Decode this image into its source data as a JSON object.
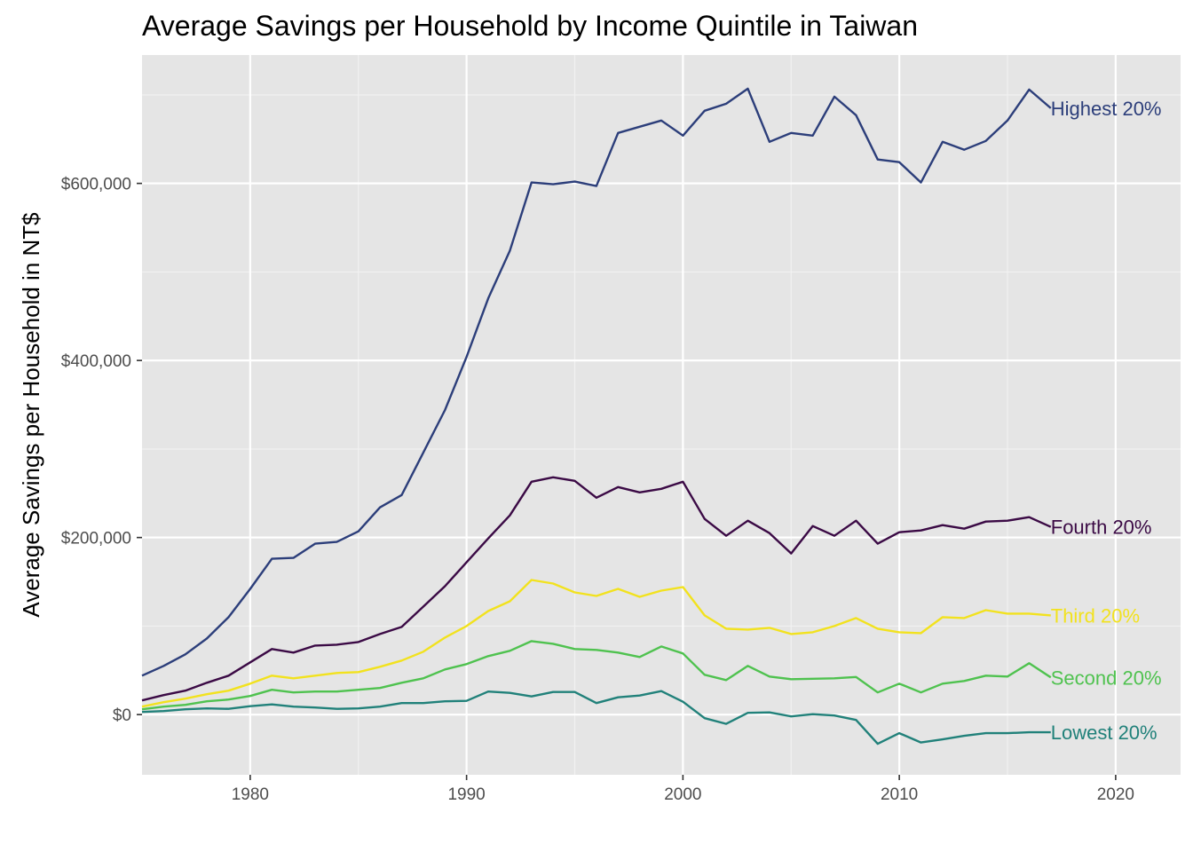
{
  "chart_data": {
    "type": "line",
    "title": "Average Savings per Household by Income Quintile in Taiwan",
    "xlabel": "",
    "ylabel": "Average Savings per Household in NT$",
    "xlim": [
      1975,
      2023
    ],
    "ylim": [
      -68000,
      745000
    ],
    "x_ticks": [
      1980,
      1990,
      2000,
      2010,
      2020
    ],
    "y_ticks": [
      0,
      200000,
      400000,
      600000
    ],
    "y_tick_labels": [
      "$0",
      "$200,000",
      "$400,000",
      "$600,000"
    ],
    "grid": true,
    "legend": "direct labels at line ends",
    "x": [
      1975,
      1976,
      1977,
      1978,
      1979,
      1980,
      1981,
      1982,
      1983,
      1984,
      1985,
      1986,
      1987,
      1988,
      1989,
      1990,
      1991,
      1992,
      1993,
      1994,
      1995,
      1996,
      1997,
      1998,
      1999,
      2000,
      2001,
      2002,
      2003,
      2004,
      2005,
      2006,
      2007,
      2008,
      2009,
      2010,
      2011,
      2012,
      2013,
      2014,
      2015,
      2016,
      2017
    ],
    "series": [
      {
        "name": "Highest 20%",
        "color": "#2c3e7a",
        "values": [
          44000,
          55000,
          68000,
          86000,
          110000,
          142000,
          176000,
          177000,
          193000,
          195000,
          207000,
          234000,
          248000,
          296000,
          344000,
          404000,
          470000,
          524000,
          601000,
          599000,
          602000,
          597000,
          657000,
          664000,
          671000,
          654000,
          682000,
          690000,
          707000,
          647000,
          657000,
          654000,
          698000,
          677000,
          627000,
          624000,
          601000,
          647000,
          638000,
          648000,
          671000,
          706000,
          685000
        ]
      },
      {
        "name": "Fourth 20%",
        "color": "#3b0a45",
        "values": [
          16000,
          22000,
          27000,
          36000,
          44000,
          59000,
          74000,
          70000,
          78000,
          79000,
          82000,
          91000,
          99000,
          122000,
          145000,
          172000,
          199000,
          225000,
          263000,
          268000,
          264000,
          245000,
          257000,
          251000,
          255000,
          263000,
          221000,
          202000,
          219000,
          205000,
          182000,
          213000,
          202000,
          219000,
          193000,
          206000,
          208000,
          214000,
          210000,
          218000,
          219000,
          223000,
          212000
        ]
      },
      {
        "name": "Third 20%",
        "color": "#f2e21e",
        "values": [
          9000,
          14000,
          18000,
          23000,
          27000,
          35000,
          44000,
          41000,
          44000,
          47000,
          48000,
          54000,
          61000,
          71000,
          87000,
          100000,
          117000,
          128000,
          152000,
          148000,
          138000,
          134000,
          142000,
          133000,
          140000,
          144000,
          112000,
          97000,
          96000,
          98000,
          91000,
          93000,
          100000,
          109000,
          97000,
          93000,
          92000,
          110000,
          109000,
          118000,
          114000,
          114000,
          112000
        ]
      },
      {
        "name": "Second 20%",
        "color": "#4fc24f",
        "values": [
          6000,
          9000,
          11000,
          15000,
          17000,
          21000,
          28000,
          25000,
          26000,
          26000,
          28000,
          30000,
          36000,
          41000,
          51000,
          57000,
          66000,
          72000,
          83000,
          80000,
          74000,
          73000,
          70000,
          65000,
          77000,
          69000,
          45000,
          39000,
          55000,
          43000,
          40000,
          40500,
          41000,
          42500,
          25000,
          35000,
          25000,
          35000,
          38000,
          44000,
          43000,
          58000,
          42000
        ]
      },
      {
        "name": "Lowest 20%",
        "color": "#21817a",
        "values": [
          3000,
          4000,
          6000,
          7000,
          6500,
          9500,
          11500,
          9000,
          8000,
          6500,
          7000,
          9000,
          13000,
          13000,
          15000,
          15500,
          26000,
          24500,
          20500,
          25500,
          25500,
          13000,
          19500,
          21500,
          26500,
          14500,
          -4000,
          -10500,
          2000,
          2500,
          -2000,
          500,
          -1000,
          -6000,
          -33000,
          -21000,
          -31500,
          -28000,
          -24000,
          -21000,
          -21000,
          -20000,
          -20000
        ]
      }
    ]
  }
}
